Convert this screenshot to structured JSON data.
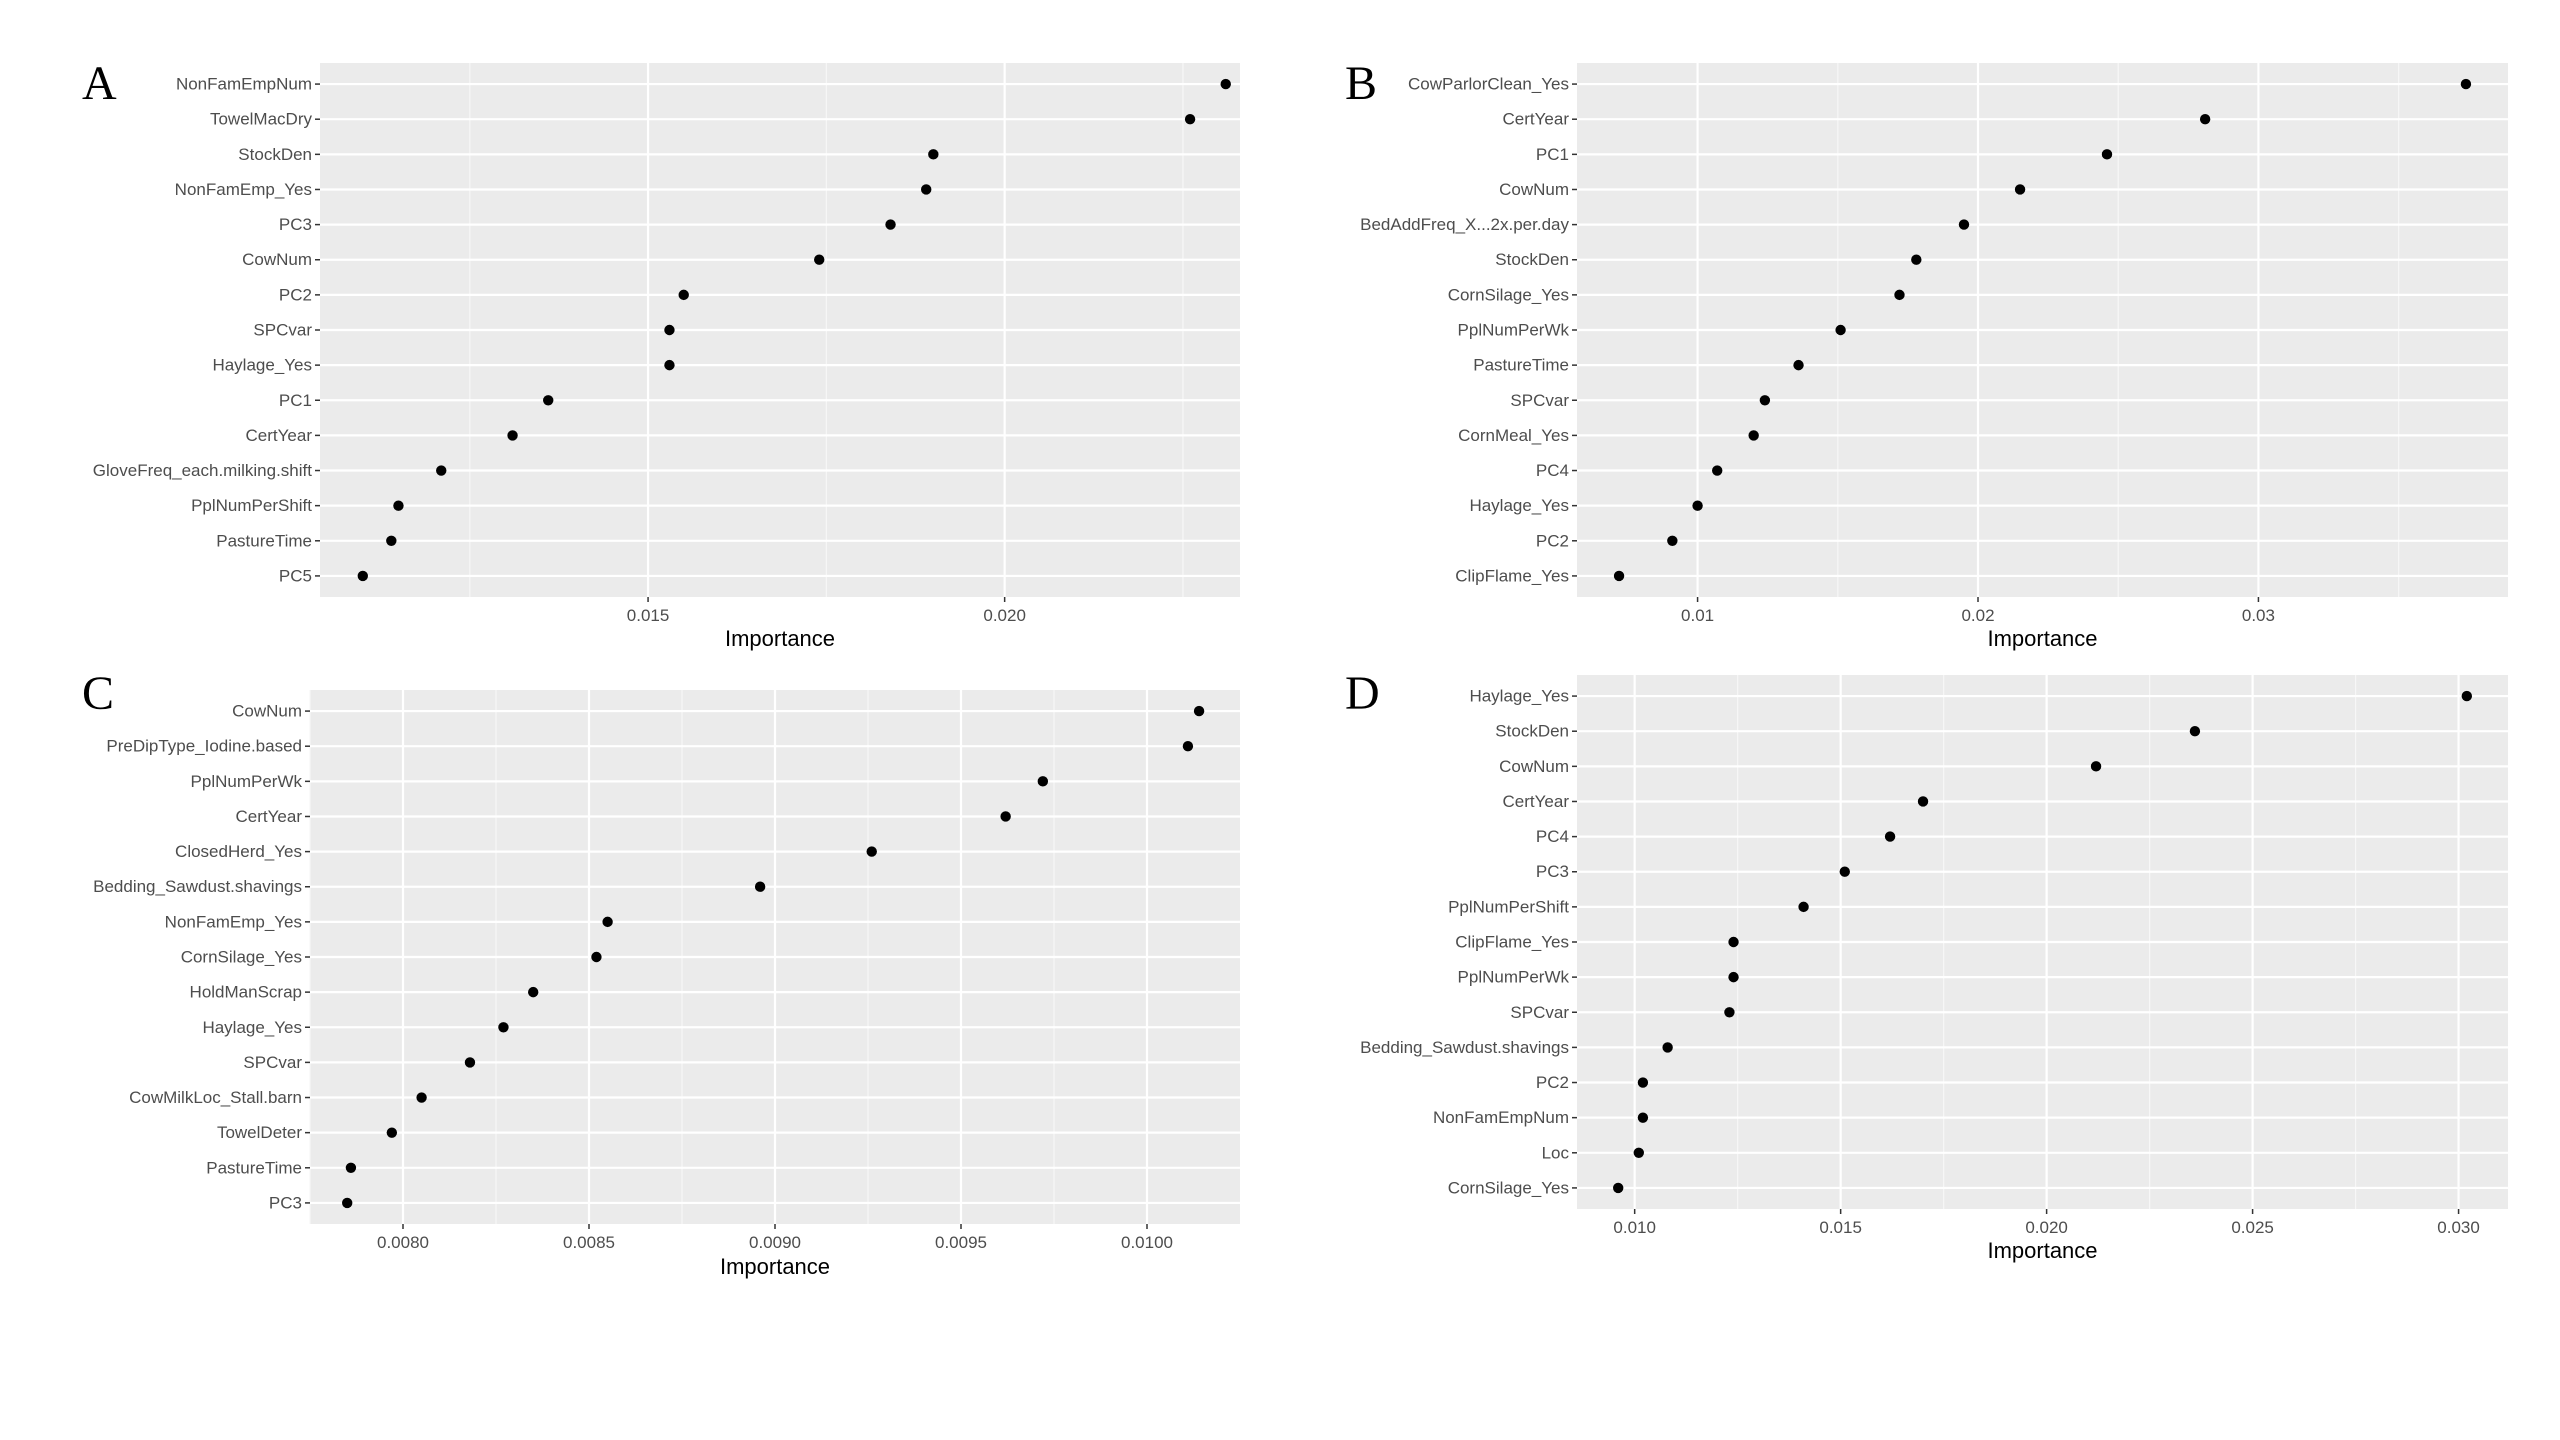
{
  "chart_data": [
    {
      "type": "scatter",
      "panel_label": "A",
      "xlabel": "Importance",
      "ylabel": "",
      "xlim": [
        0.0104,
        0.0233
      ],
      "x_ticks": [
        0.015,
        0.02
      ],
      "x_tick_labels": [
        "0.015",
        "0.020"
      ],
      "categories": [
        "NonFamEmpNum",
        "TowelMacDry",
        "StockDen",
        "NonFamEmp_Yes",
        "PC3",
        "CowNum",
        "PC2",
        "SPCvar",
        "Haylage_Yes",
        "PC1",
        "CertYear",
        "GloveFreq_each.milking.shift",
        "PplNumPerShift",
        "PastureTime",
        "PC5"
      ],
      "values": [
        0.0231,
        0.0226,
        0.019,
        0.0189,
        0.0184,
        0.0174,
        0.0155,
        0.0153,
        0.0153,
        0.0136,
        0.0131,
        0.0121,
        0.0115,
        0.0114,
        0.011
      ],
      "grid": true,
      "legend": "none"
    },
    {
      "type": "scatter",
      "panel_label": "B",
      "xlabel": "Importance",
      "ylabel": "",
      "xlim": [
        0.0057,
        0.0389
      ],
      "x_ticks": [
        0.01,
        0.02,
        0.03
      ],
      "x_tick_labels": [
        "0.01",
        "0.02",
        "0.03"
      ],
      "categories": [
        "CowParlorClean_Yes",
        "CertYear",
        "PC1",
        "CowNum",
        "BedAddFreq_X...2x.per.day",
        "StockDen",
        "CornSilage_Yes",
        "PplNumPerWk",
        "PastureTime",
        "SPCvar",
        "CornMeal_Yes",
        "PC4",
        "Haylage_Yes",
        "PC2",
        "ClipFlame_Yes"
      ],
      "values": [
        0.0374,
        0.0281,
        0.0246,
        0.0215,
        0.0195,
        0.0178,
        0.0172,
        0.0151,
        0.0136,
        0.0124,
        0.012,
        0.0107,
        0.01,
        0.0091,
        0.0072
      ],
      "grid": true,
      "legend": "none"
    },
    {
      "type": "scatter",
      "panel_label": "C",
      "xlabel": "Importance",
      "ylabel": "",
      "xlim": [
        0.00775,
        0.01025
      ],
      "x_ticks": [
        0.008,
        0.0085,
        0.009,
        0.0095,
        0.01
      ],
      "x_tick_labels": [
        "0.0080",
        "0.0085",
        "0.0090",
        "0.0095",
        "0.0100"
      ],
      "categories": [
        "CowNum",
        "PreDipType_Iodine.based",
        "PplNumPerWk",
        "CertYear",
        "ClosedHerd_Yes",
        "Bedding_Sawdust.shavings",
        "NonFamEmp_Yes",
        "CornSilage_Yes",
        "HoldManScrap",
        "Haylage_Yes",
        "SPCvar",
        "CowMilkLoc_Stall.barn",
        "TowelDeter",
        "PastureTime",
        "PC3"
      ],
      "values": [
        0.01014,
        0.01011,
        0.00972,
        0.00962,
        0.00926,
        0.00896,
        0.00855,
        0.00852,
        0.00835,
        0.00827,
        0.00818,
        0.00805,
        0.00797,
        0.00786,
        0.00785
      ],
      "grid": true,
      "legend": "none"
    },
    {
      "type": "scatter",
      "panel_label": "D",
      "xlabel": "Importance",
      "ylabel": "",
      "xlim": [
        0.0086,
        0.0312
      ],
      "x_ticks": [
        0.01,
        0.015,
        0.02,
        0.025,
        0.03
      ],
      "x_tick_labels": [
        "0.010",
        "0.015",
        "0.020",
        "0.025",
        "0.030"
      ],
      "categories": [
        "Haylage_Yes",
        "StockDen",
        "CowNum",
        "CertYear",
        "PC4",
        "PC3",
        "PplNumPerShift",
        "ClipFlame_Yes",
        "PplNumPerWk",
        "SPCvar",
        "Bedding_Sawdust.shavings",
        "PC2",
        "NonFamEmpNum",
        "Loc",
        "CornSilage_Yes"
      ],
      "values": [
        0.0302,
        0.0236,
        0.0212,
        0.017,
        0.0162,
        0.0151,
        0.0141,
        0.0124,
        0.0124,
        0.0123,
        0.0108,
        0.0102,
        0.0102,
        0.0101,
        0.0096
      ],
      "grid": true,
      "legend": "none"
    }
  ]
}
